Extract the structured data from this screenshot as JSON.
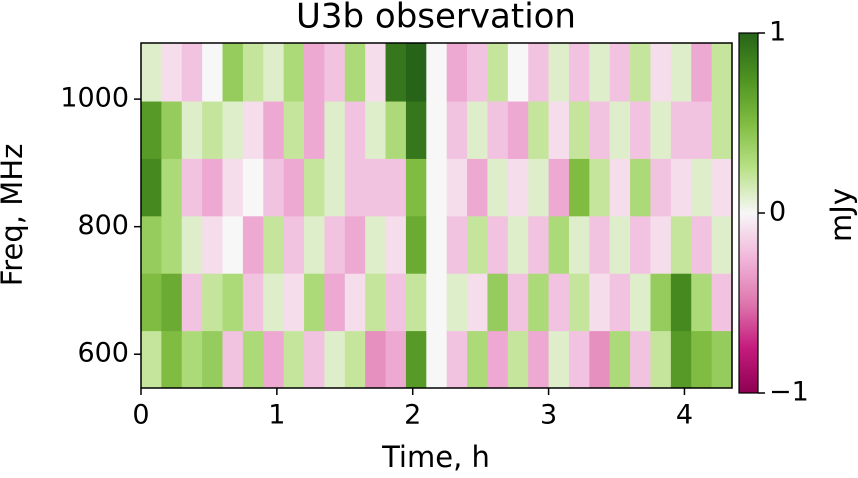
{
  "chart_data": {
    "type": "heatmap",
    "title": "U3b observation",
    "xlabel": "Time, h",
    "ylabel": "Freq, MHz",
    "colorbar_label": "mJy",
    "xlim": [
      0,
      4.35
    ],
    "ylim": [
      547,
      1088
    ],
    "xticks": [
      0,
      1,
      2,
      3,
      4
    ],
    "yticks": [
      600,
      800,
      1000
    ],
    "xbins": [
      0,
      0.15,
      0.3,
      0.45,
      0.6,
      0.75,
      0.9,
      1.05,
      1.2,
      1.35,
      1.5,
      1.65,
      1.8,
      1.95,
      2.1,
      2.25,
      2.4,
      2.55,
      2.7,
      2.85,
      3.0,
      3.15,
      3.3,
      3.45,
      3.6,
      3.75,
      3.9,
      4.05,
      4.2,
      4.35
    ],
    "ybins": [
      547,
      637,
      727,
      817,
      907,
      997,
      1088
    ],
    "clim": [
      -1,
      1
    ],
    "cticks": [
      {
        "value": -1,
        "label": "−1"
      },
      0,
      1
    ],
    "colormap": [
      "#8e0152",
      "#c51b7d",
      "#de77ae",
      "#f1b6da",
      "#f7f7f7",
      "#b8e186",
      "#7fbc41",
      "#4d9221",
      "#276419"
    ],
    "z": [
      [
        0.2,
        0.5,
        0.3,
        0.4,
        -0.2,
        0.3,
        -0.3,
        0.2,
        -0.2,
        0.1,
        0.2,
        -0.4,
        -0.3,
        0.7,
        0,
        -0.2,
        0.3,
        -0.3,
        0.2,
        -0.3,
        0.1,
        -0.2,
        -0.4,
        0.3,
        -0.2,
        0.2,
        0.7,
        0.5,
        0.4
      ],
      [
        0.5,
        0.6,
        -0.2,
        0.2,
        0.3,
        -0.2,
        0.1,
        -0.1,
        0.3,
        -0.3,
        -0.1,
        0.2,
        -0.2,
        0.2,
        0,
        0.1,
        -0.1,
        0.4,
        -0.2,
        0.3,
        -0.2,
        0.2,
        -0.1,
        -0.2,
        0.1,
        0.4,
        0.8,
        0.3,
        -0.2
      ],
      [
        0.4,
        0.3,
        0.1,
        -0.1,
        0,
        -0.3,
        0.2,
        -0.2,
        0.1,
        -0.2,
        -0.3,
        0.1,
        -0.1,
        0.6,
        0,
        -0.2,
        0.2,
        -0.2,
        0.1,
        -0.2,
        0.3,
        0.1,
        -0.2,
        0.1,
        -0.2,
        -0.1,
        0.2,
        -0.2,
        0.1
      ],
      [
        0.8,
        0.3,
        -0.2,
        -0.3,
        -0.1,
        0,
        -0.2,
        -0.3,
        0.2,
        0.1,
        -0.2,
        -0.2,
        -0.2,
        0.5,
        0,
        -0.1,
        -0.3,
        0.1,
        -0.1,
        0.1,
        -0.3,
        0.5,
        0.2,
        -0.1,
        0.3,
        -0.2,
        -0.1,
        0.1,
        -0.1
      ],
      [
        0.7,
        0.4,
        0.1,
        0.2,
        0.1,
        -0.1,
        -0.3,
        0.2,
        -0.3,
        0.1,
        -0.2,
        0.1,
        0.3,
        0.9,
        0,
        -0.2,
        0.1,
        -0.2,
        -0.3,
        0.2,
        -0.1,
        0.2,
        -0.2,
        0.1,
        -0.2,
        0.1,
        -0.2,
        -0.2,
        0.2
      ],
      [
        0.1,
        -0.1,
        -0.2,
        0,
        0.4,
        0.2,
        0.1,
        0.3,
        -0.3,
        -0.2,
        0.3,
        -0.1,
        0.9,
        1,
        0,
        -0.3,
        -0.2,
        0.2,
        0,
        -0.2,
        0.1,
        -0.2,
        0.1,
        -0.2,
        0.2,
        -0.1,
        0.1,
        -0.3,
        0.2
      ]
    ]
  }
}
